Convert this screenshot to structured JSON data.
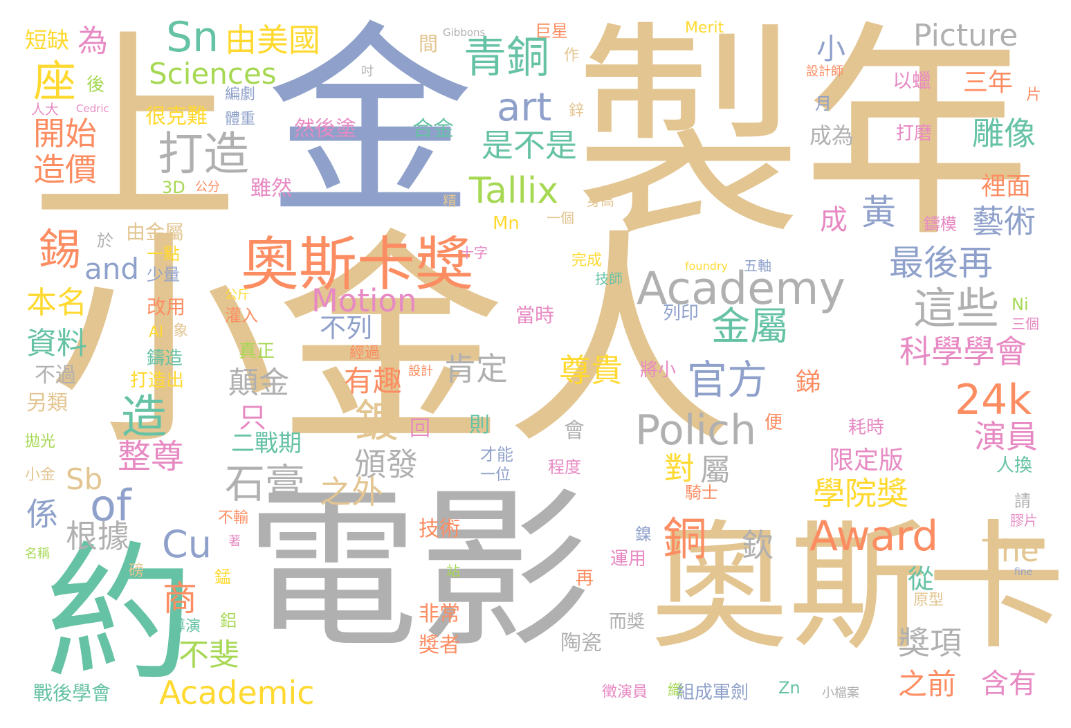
{
  "palette": {
    "tan": "#e3c591",
    "steel": "#8fa1cb",
    "gray": "#b0b0b0",
    "teal": "#66c2a5",
    "orange": "#fc8d62",
    "lime": "#a6d854",
    "yellow": "#ffd92f",
    "pink": "#e78ac3"
  },
  "words": [
    {
      "text": "小金人",
      "color": "tan"
    },
    {
      "text": "金",
      "color": "steel"
    },
    {
      "text": "製年",
      "color": "tan"
    },
    {
      "text": "上",
      "color": "tan"
    },
    {
      "text": "電影",
      "color": "gray"
    },
    {
      "text": "奧斯卡",
      "color": "tan"
    },
    {
      "text": "約",
      "color": "teal"
    },
    {
      "text": "奧斯卡獎",
      "color": "orange"
    },
    {
      "text": "Academy",
      "color": "gray"
    },
    {
      "text": "Award",
      "color": "orange"
    },
    {
      "text": "Polich",
      "color": "gray"
    },
    {
      "text": "Picture",
      "color": "gray"
    },
    {
      "text": "Sciences",
      "color": "lime"
    },
    {
      "text": "Sn",
      "color": "teal"
    },
    {
      "text": "由美國",
      "color": "yellow"
    },
    {
      "text": "青銅",
      "color": "teal"
    },
    {
      "text": "Tallix",
      "color": "lime"
    },
    {
      "text": "art",
      "color": "steel"
    },
    {
      "text": "打造",
      "color": "gray"
    },
    {
      "text": "座",
      "color": "yellow"
    },
    {
      "text": "開始",
      "color": "orange"
    },
    {
      "text": "造價",
      "color": "orange"
    },
    {
      "text": "為",
      "color": "pink"
    },
    {
      "text": "短缺",
      "color": "yellow"
    },
    {
      "text": "是不是",
      "color": "teal"
    },
    {
      "text": "黃",
      "color": "steel"
    },
    {
      "text": "成",
      "color": "pink"
    },
    {
      "text": "最後再",
      "color": "steel"
    },
    {
      "text": "藝術",
      "color": "steel"
    },
    {
      "text": "雕像",
      "color": "teal"
    },
    {
      "text": "三年",
      "color": "orange"
    },
    {
      "text": "裡面",
      "color": "orange"
    },
    {
      "text": "這些",
      "color": "gray"
    },
    {
      "text": "金屬",
      "color": "teal"
    },
    {
      "text": "官方",
      "color": "steel"
    },
    {
      "text": "科學學會",
      "color": "pink"
    },
    {
      "text": "24k",
      "color": "orange"
    },
    {
      "text": "演員",
      "color": "pink"
    },
    {
      "text": "Motion",
      "color": "pink"
    },
    {
      "text": "and",
      "color": "steel"
    },
    {
      "text": "錫",
      "color": "orange"
    },
    {
      "text": "本名",
      "color": "yellow"
    },
    {
      "text": "資料",
      "color": "teal"
    },
    {
      "text": "造",
      "color": "teal"
    },
    {
      "text": "of",
      "color": "steel"
    },
    {
      "text": "Cu",
      "color": "steel"
    },
    {
      "text": "商",
      "color": "orange"
    },
    {
      "text": "Sb",
      "color": "tan"
    },
    {
      "text": "係",
      "color": "steel"
    },
    {
      "text": "根據",
      "color": "gray"
    },
    {
      "text": "整尊",
      "color": "pink"
    },
    {
      "text": "不斐",
      "color": "lime"
    },
    {
      "text": "Academic",
      "color": "yellow"
    },
    {
      "text": "石膏",
      "color": "gray"
    },
    {
      "text": "鍍",
      "color": "tan"
    },
    {
      "text": "頒發",
      "color": "gray"
    },
    {
      "text": "之外",
      "color": "tan"
    },
    {
      "text": "有趣",
      "color": "orange"
    },
    {
      "text": "肯定",
      "color": "gray"
    },
    {
      "text": "尊貴",
      "color": "yellow"
    },
    {
      "text": "對",
      "color": "yellow"
    },
    {
      "text": "屬",
      "color": "gray"
    },
    {
      "text": "銅",
      "color": "orange"
    },
    {
      "text": "學院獎",
      "color": "yellow"
    },
    {
      "text": "限定版",
      "color": "pink"
    },
    {
      "text": "The",
      "color": "tan"
    },
    {
      "text": "從",
      "color": "teal"
    },
    {
      "text": "獎項",
      "color": "gray"
    },
    {
      "text": "之前",
      "color": "orange"
    },
    {
      "text": "含有",
      "color": "pink"
    },
    {
      "text": "不列",
      "color": "steel"
    },
    {
      "text": "顛金",
      "color": "gray"
    },
    {
      "text": "只",
      "color": "pink"
    },
    {
      "text": "二戰期",
      "color": "teal"
    },
    {
      "text": "欽",
      "color": "gray"
    },
    {
      "text": "銻",
      "color": "orange"
    },
    {
      "text": "很克難",
      "color": "yellow"
    },
    {
      "text": "然後塗",
      "color": "pink"
    },
    {
      "text": "合金",
      "color": "teal"
    },
    {
      "text": "雖然",
      "color": "pink"
    },
    {
      "text": "3D",
      "color": "lime"
    },
    {
      "text": "公分",
      "color": "orange"
    },
    {
      "text": "由金屬",
      "color": "tan"
    },
    {
      "text": "於",
      "color": "gray"
    },
    {
      "text": "一點",
      "color": "yellow"
    },
    {
      "text": "少量",
      "color": "steel"
    },
    {
      "text": "改用",
      "color": "orange"
    },
    {
      "text": "Al",
      "color": "yellow"
    },
    {
      "text": "象",
      "color": "tan"
    },
    {
      "text": "鑄造",
      "color": "teal"
    },
    {
      "text": "打造出",
      "color": "yellow"
    },
    {
      "text": "不過",
      "color": "gray"
    },
    {
      "text": "另類",
      "color": "tan"
    },
    {
      "text": "拋光",
      "color": "lime"
    },
    {
      "text": "小金",
      "color": "tan"
    },
    {
      "text": "名稱",
      "color": "lime"
    },
    {
      "text": "戰後學會",
      "color": "teal"
    },
    {
      "text": "後",
      "color": "lime"
    },
    {
      "text": "人大",
      "color": "pink"
    },
    {
      "text": "Cedric",
      "color": "pink"
    },
    {
      "text": "編劇",
      "color": "steel"
    },
    {
      "text": "體重",
      "color": "steel"
    },
    {
      "text": "吋",
      "color": "gray"
    },
    {
      "text": "作",
      "color": "tan"
    },
    {
      "text": "Gibbons",
      "color": "gray"
    },
    {
      "text": "間",
      "color": "tan"
    },
    {
      "text": "巨星",
      "color": "orange"
    },
    {
      "text": "Merit",
      "color": "yellow"
    },
    {
      "text": "設計師",
      "color": "orange"
    },
    {
      "text": "以蠟",
      "color": "pink"
    },
    {
      "text": "片",
      "color": "orange"
    },
    {
      "text": "小",
      "color": "steel"
    },
    {
      "text": "月",
      "color": "steel"
    },
    {
      "text": "成為",
      "color": "gray"
    },
    {
      "text": "打磨",
      "color": "pink"
    },
    {
      "text": "鋅",
      "color": "tan"
    },
    {
      "text": "身高",
      "color": "tan"
    },
    {
      "text": "精",
      "color": "tan"
    },
    {
      "text": "Mn",
      "color": "yellow"
    },
    {
      "text": "一個",
      "color": "tan"
    },
    {
      "text": "鑄模",
      "color": "pink"
    },
    {
      "text": "十字",
      "color": "pink"
    },
    {
      "text": "完成",
      "color": "yellow"
    },
    {
      "text": "foundry",
      "color": "yellow"
    },
    {
      "text": "五軸",
      "color": "steel"
    },
    {
      "text": "技師",
      "color": "teal"
    },
    {
      "text": "當時",
      "color": "pink"
    },
    {
      "text": "列印",
      "color": "steel"
    },
    {
      "text": "Ni",
      "color": "lime"
    },
    {
      "text": "三個",
      "color": "pink"
    },
    {
      "text": "公斤",
      "color": "yellow"
    },
    {
      "text": "灌入",
      "color": "orange"
    },
    {
      "text": "真正",
      "color": "lime"
    },
    {
      "text": "經過",
      "color": "orange"
    },
    {
      "text": "設計",
      "color": "orange"
    },
    {
      "text": "將小",
      "color": "pink"
    },
    {
      "text": "耗時",
      "color": "pink"
    },
    {
      "text": "回",
      "color": "pink"
    },
    {
      "text": "則",
      "color": "teal"
    },
    {
      "text": "會",
      "color": "gray"
    },
    {
      "text": "便",
      "color": "orange"
    },
    {
      "text": "才能",
      "color": "steel"
    },
    {
      "text": "一位",
      "color": "steel"
    },
    {
      "text": "程度",
      "color": "pink"
    },
    {
      "text": "人換",
      "color": "teal"
    },
    {
      "text": "騎士",
      "color": "orange"
    },
    {
      "text": "請",
      "color": "gray"
    },
    {
      "text": "膠片",
      "color": "pink"
    },
    {
      "text": "不輸",
      "color": "orange"
    },
    {
      "text": "著",
      "color": "pink"
    },
    {
      "text": "技術",
      "color": "orange"
    },
    {
      "text": "鎳",
      "color": "steel"
    },
    {
      "text": "運用",
      "color": "pink"
    },
    {
      "text": "錳",
      "color": "yellow"
    },
    {
      "text": "磅",
      "color": "tan"
    },
    {
      "text": "站",
      "color": "lime"
    },
    {
      "text": "再",
      "color": "orange"
    },
    {
      "text": "fine",
      "color": "steel"
    },
    {
      "text": "原型",
      "color": "tan"
    },
    {
      "text": "鋁",
      "color": "lime"
    },
    {
      "text": "導演",
      "color": "teal"
    },
    {
      "text": "非常",
      "color": "orange"
    },
    {
      "text": "而獎",
      "color": "gray"
    },
    {
      "text": "獎者",
      "color": "orange"
    },
    {
      "text": "陶瓷",
      "color": "gray"
    },
    {
      "text": "徵演員",
      "color": "pink"
    },
    {
      "text": "織",
      "color": "lime"
    },
    {
      "text": "組成軍劍",
      "color": "steel"
    },
    {
      "text": "Zn",
      "color": "teal"
    },
    {
      "text": "小檔案",
      "color": "gray"
    }
  ]
}
